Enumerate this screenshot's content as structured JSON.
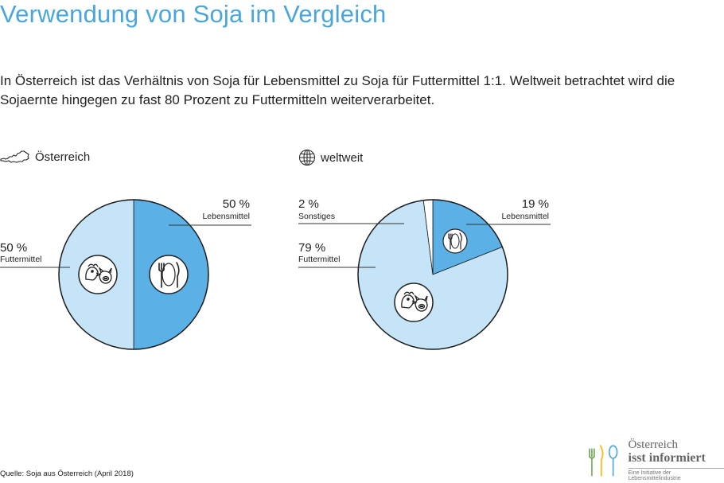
{
  "title": "Verwendung von Soja im Vergleich",
  "subtitle": "In Österreich ist das Verhältnis von Soja für Lebensmittel zu Soja für Futtermittel 1:1. Weltweit betrachtet wird die Sojaernte hingegen zu fast 80 Prozent zu Futtermitteln weiterverarbeitet.",
  "regions": {
    "austria": {
      "label": "Österreich",
      "icon": "austria-map-icon"
    },
    "world": {
      "label": "weltweit",
      "icon": "globe-icon"
    }
  },
  "colors": {
    "title": "#4aa6da",
    "lebensmittel": "#5bb0e6",
    "futtermittel": "#c6e4f7",
    "sonstiges": "#ffffff",
    "outline": "#1a1a1a"
  },
  "chart_data": [
    {
      "type": "pie",
      "title": "Österreich",
      "slices": [
        {
          "label": "Lebensmittel",
          "value": 50,
          "value_label": "50 %",
          "icon": "cutlery-icon"
        },
        {
          "label": "Futtermittel",
          "value": 50,
          "value_label": "50 %",
          "icon": "livestock-icon"
        }
      ]
    },
    {
      "type": "pie",
      "title": "weltweit",
      "slices": [
        {
          "label": "Lebensmittel",
          "value": 19,
          "value_label": "19 %",
          "icon": "cutlery-icon"
        },
        {
          "label": "Futtermittel",
          "value": 79,
          "value_label": "79 %",
          "icon": "livestock-icon"
        },
        {
          "label": "Sonstiges",
          "value": 2,
          "value_label": "2 %"
        }
      ]
    }
  ],
  "source": "Quelle: Soja aus Österreich (April 2018)",
  "logo": {
    "line1": "Österreich",
    "line2": "isst informiert",
    "line3": "Eine Initiative der Lebensmittelindustrie"
  }
}
